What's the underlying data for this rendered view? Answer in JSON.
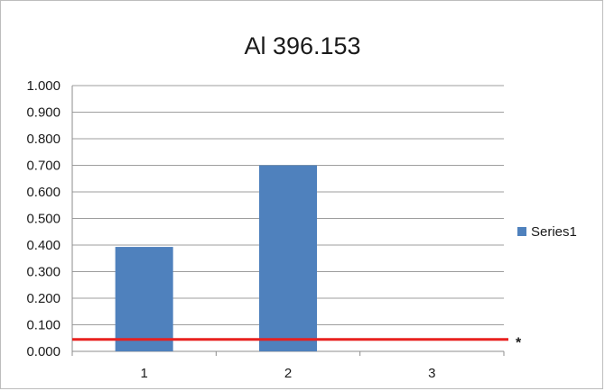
{
  "chart_data": {
    "type": "bar",
    "title": "Al 396.153",
    "xlabel": "",
    "ylabel": "",
    "categories": [
      "1",
      "2",
      "3"
    ],
    "series": [
      {
        "name": "Series1",
        "values": [
          0.393,
          0.7,
          0.0
        ],
        "color": "#4f81bd"
      }
    ],
    "ylim": [
      0.0,
      1.0
    ],
    "ytick_labels": [
      "0.000",
      "0.100",
      "0.200",
      "0.300",
      "0.400",
      "0.500",
      "0.600",
      "0.700",
      "0.800",
      "0.900",
      "1.000"
    ],
    "grid": true,
    "gridline_color": "#9e9e9e",
    "legend": "right",
    "reference_line": {
      "value": 0.045,
      "color": "#e8201e",
      "label": "*"
    }
  }
}
